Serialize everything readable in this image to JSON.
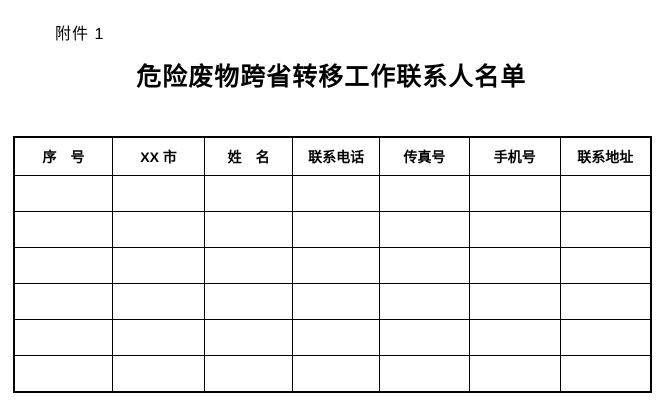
{
  "document": {
    "attachment_label": "附件 1",
    "title": "危险废物跨省转移工作联系人名单"
  },
  "table": {
    "headers": [
      "序　号",
      "XX 市",
      "姓　名",
      "联系电话",
      "传真号",
      "手机号",
      "联系地址"
    ],
    "rows": [
      [
        "",
        "",
        "",
        "",
        "",
        "",
        ""
      ],
      [
        "",
        "",
        "",
        "",
        "",
        "",
        ""
      ],
      [
        "",
        "",
        "",
        "",
        "",
        "",
        ""
      ],
      [
        "",
        "",
        "",
        "",
        "",
        "",
        ""
      ],
      [
        "",
        "",
        "",
        "",
        "",
        "",
        ""
      ],
      [
        "",
        "",
        "",
        "",
        "",
        "",
        ""
      ]
    ]
  },
  "colors": {
    "background": "#ffffff",
    "text": "#000000",
    "border": "#000000"
  }
}
